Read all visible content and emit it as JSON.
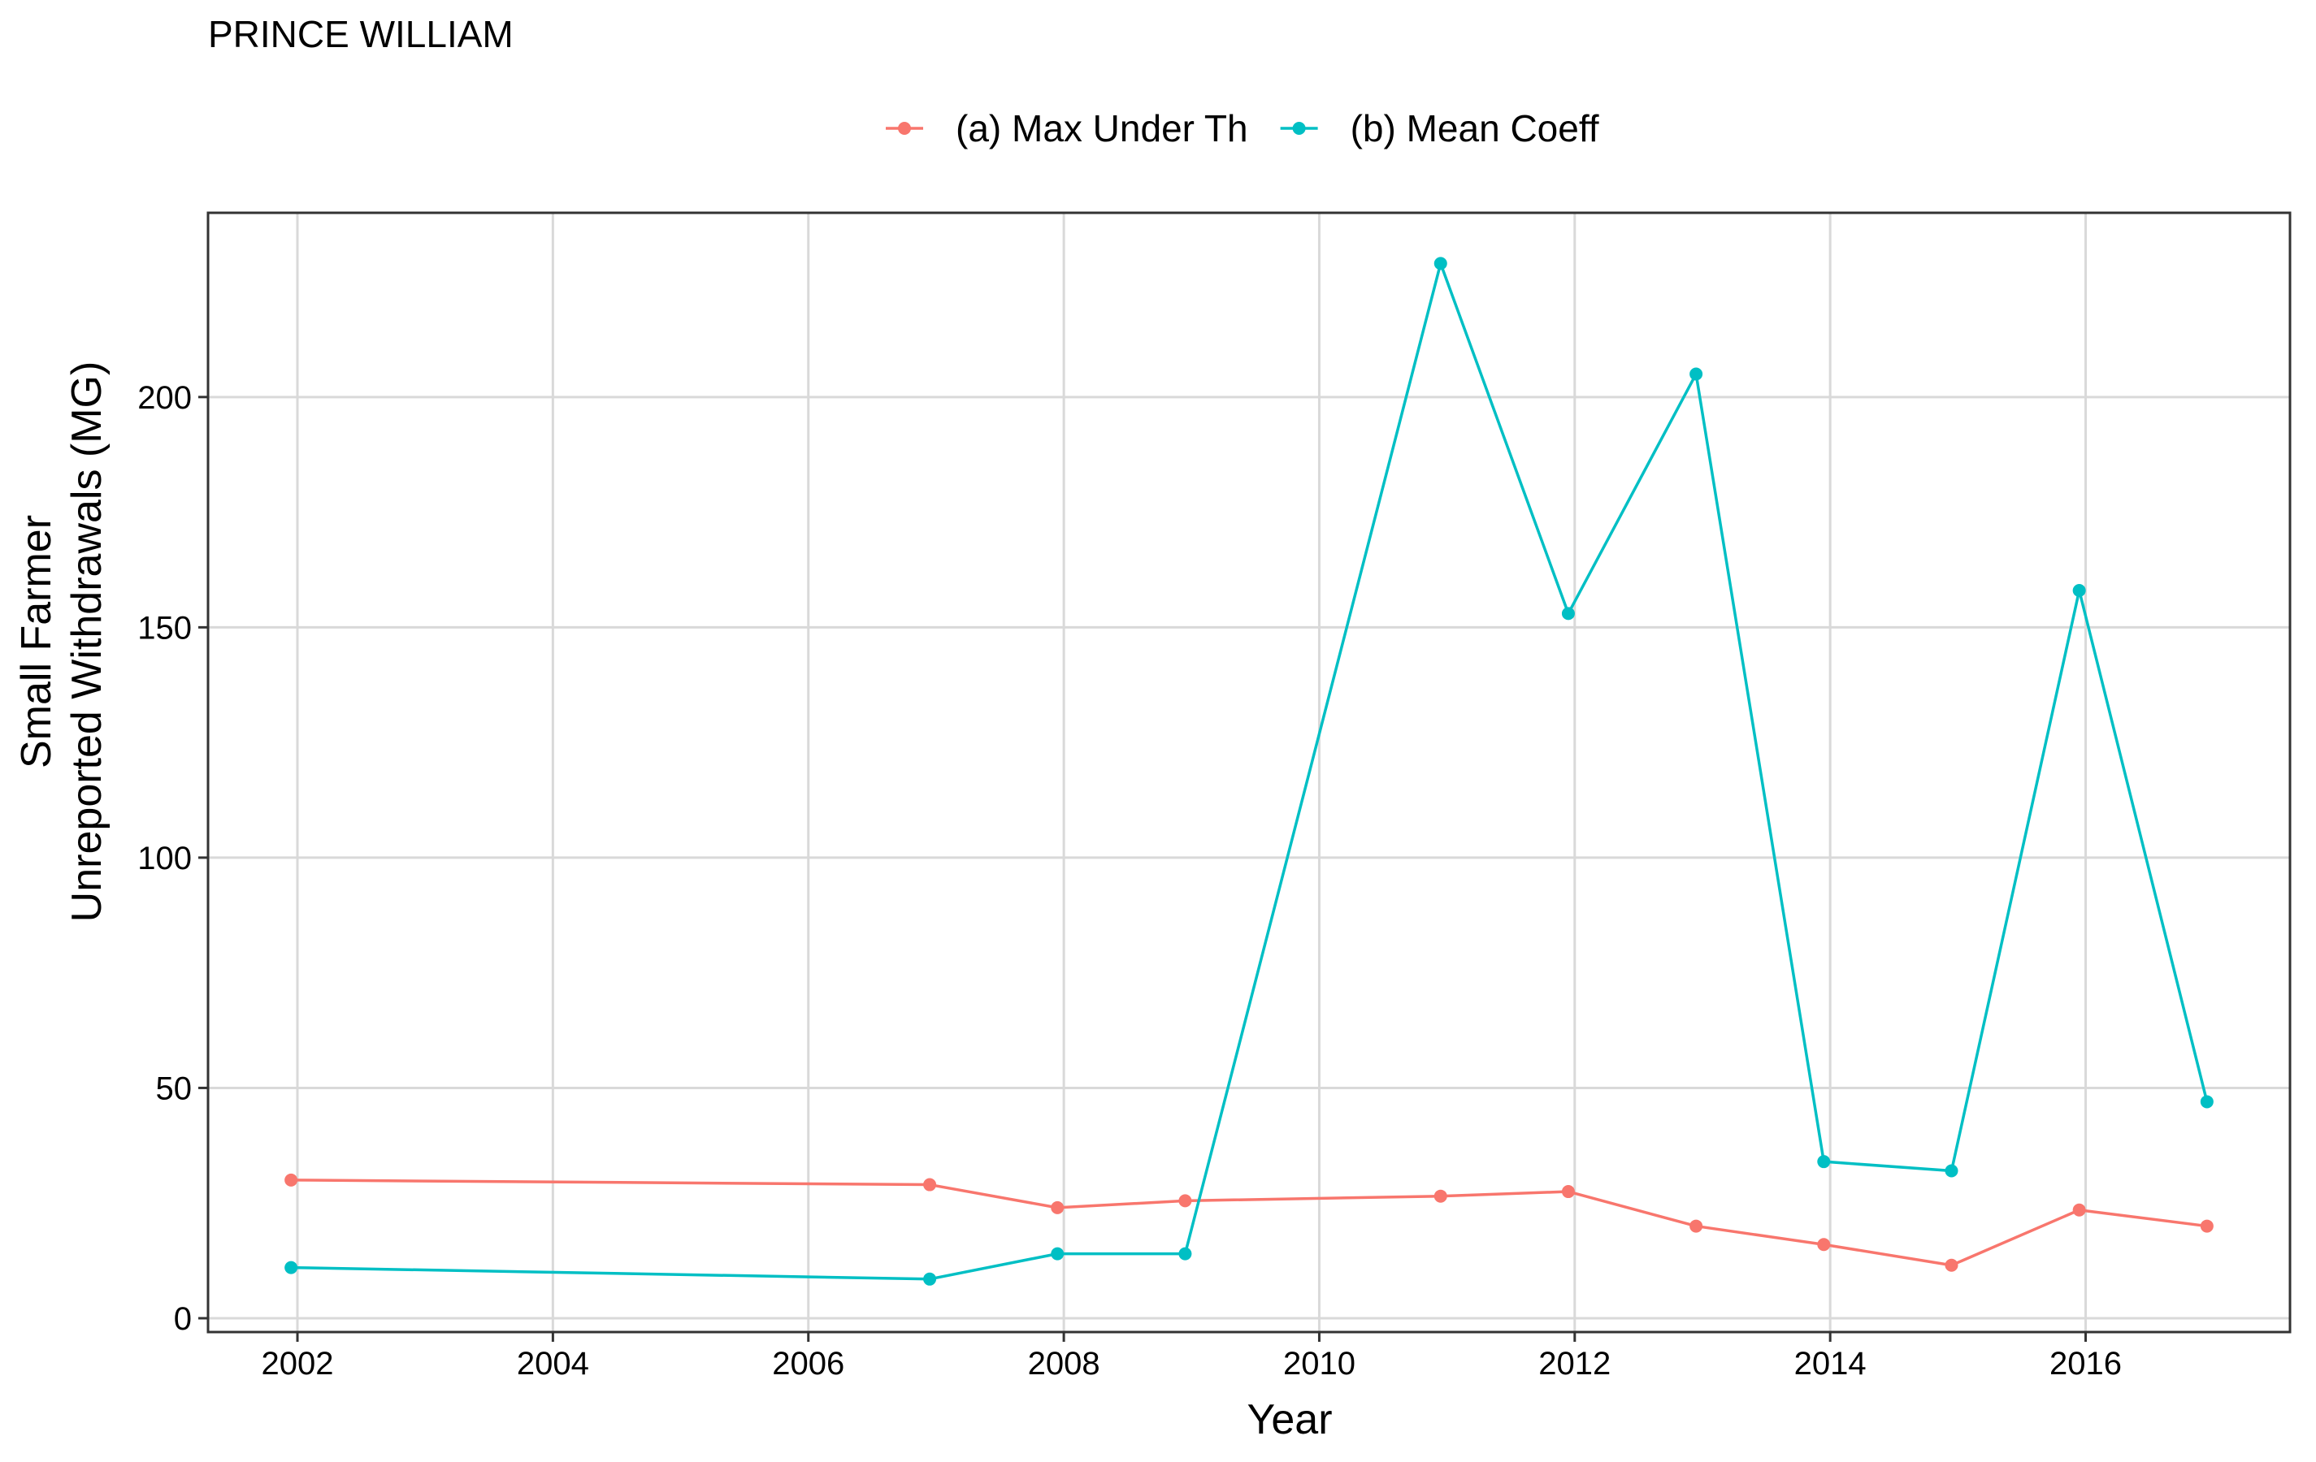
{
  "chart_data": {
    "type": "line",
    "title": "PRINCE WILLIAM",
    "xlabel": "Year",
    "ylabel_lines": [
      "Small Farmer",
      "Unreported Withdrawals (MG)"
    ],
    "xlim": [
      2001.3,
      2017.6
    ],
    "ylim": [
      -3,
      240
    ],
    "x_ticks": [
      2002,
      2004,
      2006,
      2008,
      2010,
      2012,
      2014,
      2016
    ],
    "y_ticks": [
      0,
      50,
      100,
      150,
      200
    ],
    "grid": true,
    "legend_position": "top",
    "series": [
      {
        "name": "(a) Max Under Th",
        "color": "#F8766D",
        "x": [
          2001.95,
          2006.95,
          2007.95,
          2008.95,
          2010.95,
          2011.95,
          2012.95,
          2013.95,
          2014.95,
          2015.95,
          2016.95
        ],
        "y": [
          30,
          29,
          24,
          25.5,
          26.5,
          27.5,
          20,
          16,
          11.5,
          23.5,
          20
        ]
      },
      {
        "name": "(b) Mean Coeff",
        "color": "#00BFC4",
        "x": [
          2001.95,
          2006.95,
          2007.95,
          2008.95,
          2010.95,
          2011.95,
          2012.95,
          2013.95,
          2014.95,
          2015.95,
          2016.95
        ],
        "y": [
          11,
          8.5,
          14,
          14,
          229,
          153,
          205,
          34,
          32,
          158,
          47
        ]
      }
    ]
  }
}
